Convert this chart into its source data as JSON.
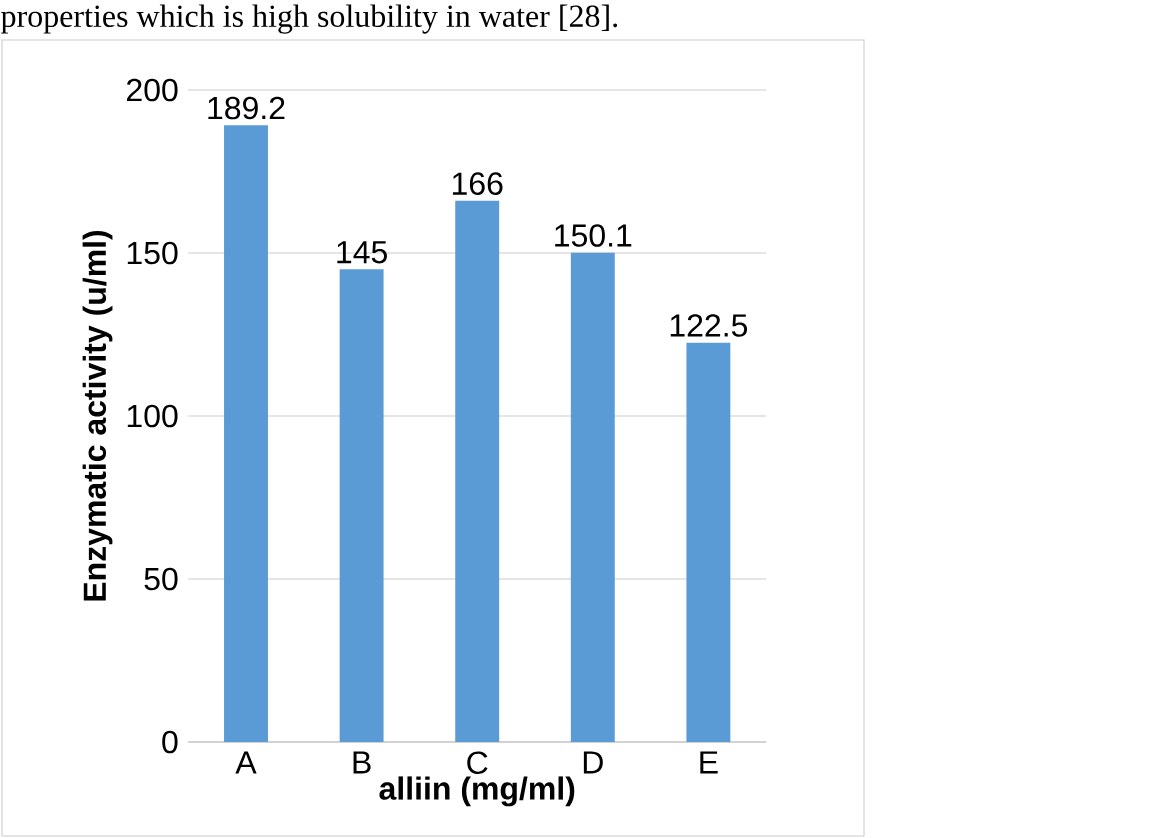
{
  "chart_data": {
    "type": "bar",
    "xlabel": "alliin (mg/ml)",
    "ylabel": "Enzymatic activity (u/ml)",
    "categories": [
      "A",
      "B",
      "C",
      "D",
      "E"
    ],
    "values": [
      189.2,
      145,
      166,
      150.1,
      122.5
    ],
    "color": "#5b9bd5",
    "ylim": [
      0,
      200
    ],
    "yticks": [
      0,
      50,
      100,
      150,
      200
    ],
    "grid": "y",
    "data_labels": true,
    "annotations": [
      "properties which is high solubility in water [28]."
    ]
  }
}
